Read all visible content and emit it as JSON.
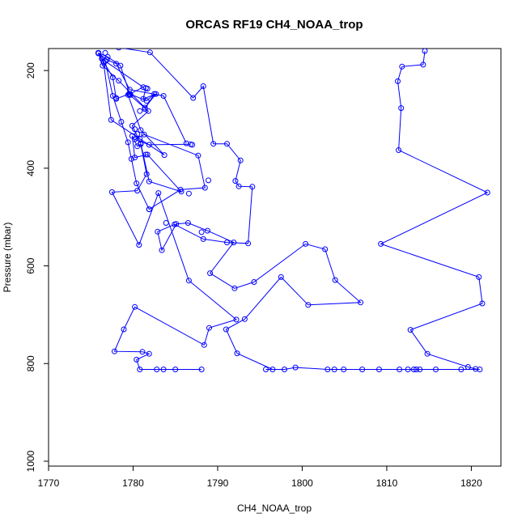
{
  "chart_data": {
    "type": "line",
    "title": "ORCAS RF19 CH4_NOAA_trop",
    "xlabel": "CH4_NOAA_trop",
    "ylabel": "Pressure (mbar)",
    "xlim": [
      1770,
      1823.5
    ],
    "ylim": [
      1010,
      155
    ],
    "y_reversed": true,
    "x_ticks": [
      1770,
      1780,
      1790,
      1800,
      1810,
      1820
    ],
    "y_ticks": [
      200,
      400,
      600,
      800,
      1000
    ],
    "grid": false,
    "legend": "none",
    "color": "#0000ff",
    "series": [
      {
        "x": [
          1814.5,
          1814.3,
          1811.8,
          1811.3,
          1811.7,
          1811.4,
          1821.9,
          1809.3,
          1820.9,
          1821.3,
          1812.8,
          1814.8,
          1819.6,
          1820.5,
          1821.0,
          1818.8,
          1815.8,
          1813.9,
          1813.5,
          1813.2,
          1812.5,
          1811.5,
          1809.1,
          1807.1,
          1804.9,
          1803.8,
          1803.0,
          1799.2,
          1797.9,
          1795.7,
          1796.5,
          1792.3,
          1791.0,
          1793.2,
          1797.5,
          1800.7,
          1806.9,
          1803.9,
          1802.7,
          1800.4,
          1794.3,
          1792.0,
          1789.1,
          1791.9,
          1788.8,
          1786.5,
          1785.1,
          1783.4,
          1782.9,
          1784.9,
          1788.3,
          1791.1,
          1793.6,
          1794.1,
          1792.5,
          1792.1,
          1792.7,
          1791.1,
          1789.5,
          1788.3,
          1787.1,
          1782.0,
          1778.3,
          1776.3
        ],
        "y": [
          160,
          188,
          192,
          222,
          277,
          363,
          450,
          555,
          623,
          677,
          731,
          780,
          807,
          811,
          812,
          812,
          812,
          812,
          812,
          812,
          812,
          812,
          812,
          812,
          812,
          812,
          812,
          808,
          812,
          812,
          812,
          779,
          730,
          709,
          623,
          680,
          675,
          629,
          566,
          555,
          633,
          646,
          615,
          552,
          528,
          512,
          514,
          568,
          530,
          515,
          545,
          552,
          554,
          438,
          437,
          426,
          384,
          350,
          350,
          232,
          256,
          163,
          153,
          150
        ]
      },
      {
        "x": [
          1788.1,
          1785.0,
          1783.6,
          1782.8,
          1780.8,
          1780.4,
          1781.9,
          1781.1,
          1777.8,
          1778.9,
          1780.2,
          1788.4,
          1789.0,
          1792.2,
          1786.6,
          1783.0,
          1780.7,
          1777.5,
          1780.5,
          1781.6,
          1780.9,
          1780.5,
          1779.9,
          1780.2,
          1781.7,
          1785.7,
          1781.9,
          1780.9,
          1779.9,
          1781.8,
          1779.6
        ],
        "y": [
          812,
          812,
          812,
          812,
          812,
          792,
          780,
          776,
          775,
          730,
          684,
          762,
          727,
          710,
          630,
          451,
          557,
          449,
          446,
          412,
          351,
          355,
          334,
          378,
          372,
          448,
          427,
          349,
          313,
          283,
          250
        ]
      },
      {
        "x": [
          1779.5,
          1778.0,
          1777.6,
          1776.3,
          1781.2,
          1779.4,
          1780.9,
          1783.7,
          1780.8,
          1777.4,
          1776.5,
          1775.9
        ],
        "y": [
          248,
          258,
          214,
          176,
          234,
          250,
          322,
          373,
          340,
          301,
          183,
          165
        ]
      },
      {
        "x": [
          1786.8,
          1781.9,
          1780.2,
          1781.3,
          1787.7,
          1788.5,
          1785.6,
          1781.9,
          1780.4,
          1779.8,
          1779.4,
          1778.6,
          1777.6,
          1776.7,
          1775.9
        ],
        "y": [
          351,
          352,
          341,
          331,
          374,
          440,
          444,
          484,
          431,
          381,
          347,
          305,
          252,
          181,
          164
        ]
      },
      {
        "x": [
          1786.3,
          1783.6,
          1779.6,
          1778.0,
          1776.9,
          1775.9
        ],
        "y": [
          349,
          252,
          239,
          186,
          178,
          164
        ]
      },
      {
        "x": [
          1781.4,
          1782.5,
          1781.6,
          1779.6,
          1778.5,
          1777.0,
          1775.9
        ],
        "y": [
          279,
          248,
          262,
          248,
          190,
          172,
          164
        ]
      },
      {
        "x": [
          1781.5,
          1781.2,
          1782.7,
          1781.4,
          1778.3,
          1776.4,
          1775.9
        ],
        "y": [
          236,
          258,
          248,
          276,
          221,
          190,
          164
        ]
      }
    ],
    "points_extra": {
      "x": [
        1780.8,
        1780.5,
        1779.7,
        1781.5,
        1781.7,
        1778.0,
        1776.7,
        1780.2,
        1786.6,
        1783.9,
        1781.9,
        1788.9,
        1788.1,
        1787.0
      ],
      "y": [
        283,
        330,
        250,
        372,
        237,
        256,
        164,
        320,
        452,
        512,
        484,
        425,
        531,
        352
      ]
    }
  }
}
